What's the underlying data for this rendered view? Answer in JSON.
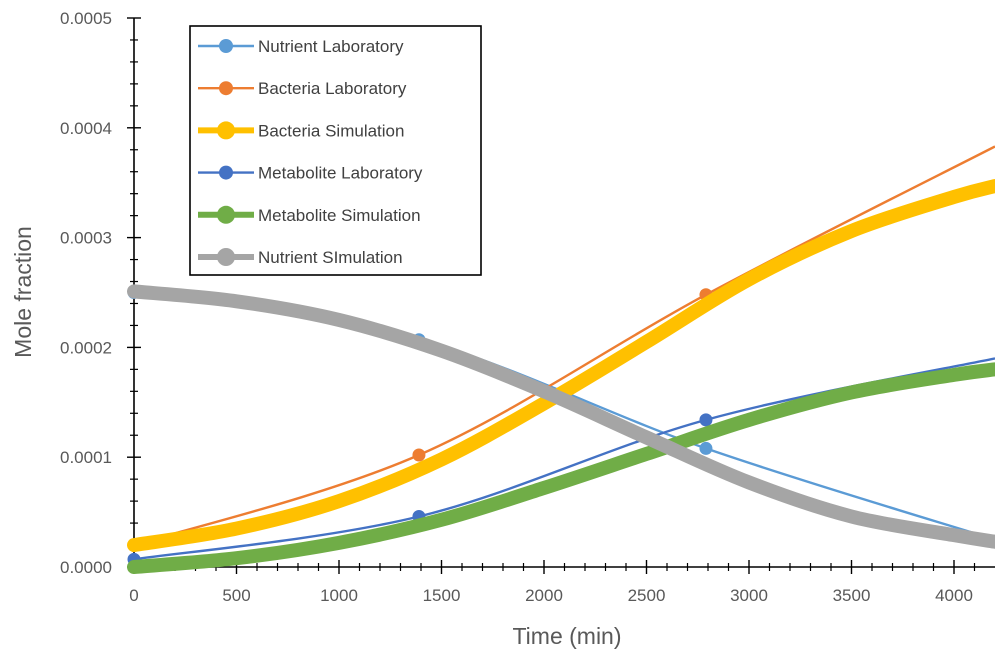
{
  "chart_data": {
    "type": "line",
    "title": "",
    "xlabel": "Time (min)",
    "ylabel": "Mole fraction",
    "xlim": [
      0,
      4200
    ],
    "ylim": [
      0,
      0.0005
    ],
    "x_ticks": [
      0,
      500,
      1000,
      1500,
      2000,
      2500,
      3000,
      3500,
      4000
    ],
    "x_tick_labels": [
      "0",
      "500",
      "1000",
      "1500",
      "2000",
      "2500",
      "3000",
      "3500",
      "4000"
    ],
    "y_ticks": [
      0,
      0.0001,
      0.0002,
      0.0003,
      0.0004,
      0.0005
    ],
    "y_tick_labels": [
      "0.0000",
      "0.0001",
      "0.0002",
      "0.0003",
      "0.0004",
      "0.0005"
    ],
    "grid": false,
    "legend_position": "top-left",
    "series": [
      {
        "name": "Nutrient Laboratory",
        "color": "#5B9BD5",
        "style": "line-markers",
        "x": [
          0,
          1390,
          2790,
          4200
        ],
        "y": [
          0.00025,
          0.000207,
          0.000108,
          2.5e-05
        ]
      },
      {
        "name": "Bacteria Laboratory",
        "color": "#ED7D31",
        "style": "line-markers",
        "x": [
          0,
          1390,
          2790,
          4200
        ],
        "y": [
          2e-05,
          0.000102,
          0.000248,
          0.000383
        ]
      },
      {
        "name": "Bacteria Simulation",
        "color": "#FFC000",
        "style": "thick-line",
        "x": [
          0,
          500,
          1000,
          1500,
          2000,
          2500,
          3000,
          3500,
          4000,
          4200
        ],
        "y": [
          2e-05,
          3.5e-05,
          6e-05,
          9.8e-05,
          0.000149,
          0.000205,
          0.000262,
          0.000306,
          0.000337,
          0.000347
        ]
      },
      {
        "name": "Metabolite Laboratory",
        "color": "#4472C4",
        "style": "line-markers",
        "x": [
          0,
          1390,
          2790,
          4200
        ],
        "y": [
          7e-06,
          4.6e-05,
          0.000134,
          0.00019
        ]
      },
      {
        "name": "Metabolite Simulation",
        "color": "#70AD47",
        "style": "thick-line",
        "x": [
          0,
          500,
          1000,
          1500,
          2000,
          2500,
          3000,
          3500,
          4000,
          4200
        ],
        "y": [
          0,
          8e-06,
          2.2e-05,
          4.3e-05,
          7.2e-05,
          0.000103,
          0.000134,
          0.000159,
          0.000175,
          0.00018
        ]
      },
      {
        "name": "Nutrient SImulation",
        "color": "#A5A5A5",
        "style": "thick-line",
        "x": [
          0,
          500,
          1000,
          1500,
          2000,
          2500,
          3000,
          3500,
          4000,
          4200
        ],
        "y": [
          0.000251,
          0.000242,
          0.000225,
          0.000197,
          0.00016,
          0.000118,
          7.7e-05,
          4.6e-05,
          2.9e-05,
          2.3e-05
        ]
      }
    ]
  }
}
